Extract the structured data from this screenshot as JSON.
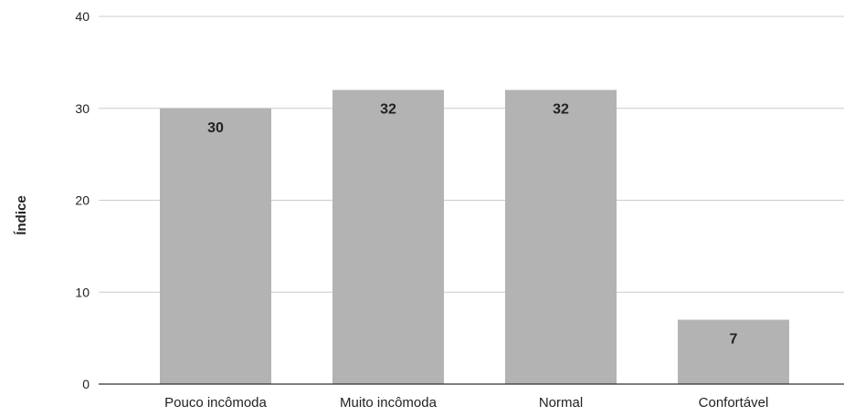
{
  "chart_data": {
    "type": "bar",
    "title": "",
    "xlabel": "",
    "ylabel": "Índice",
    "categories": [
      "Pouco incômoda",
      "Muito incômoda",
      "Normal",
      "Confortável"
    ],
    "values": [
      30,
      32,
      32,
      7
    ],
    "ylim": [
      0,
      40
    ],
    "yticks": [
      0,
      10,
      20,
      30,
      40
    ],
    "grid": true,
    "legend": "none",
    "show_data_labels": true,
    "colors": {
      "bar": "#b3b3b3",
      "grid": "#cccccc",
      "axis": "#333333",
      "text": "#222222"
    }
  }
}
